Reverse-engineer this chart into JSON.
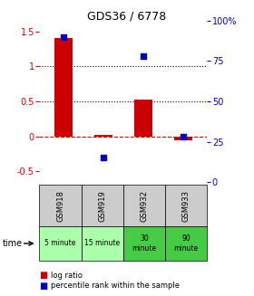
{
  "title": "GDS36 / 6778",
  "samples": [
    "GSM918",
    "GSM919",
    "GSM932",
    "GSM933"
  ],
  "time_labels": [
    "5 minute",
    "15 minute",
    "30\nminute",
    "90\nminute"
  ],
  "time_colors_light": [
    "#aaffaa",
    "#aaffaa"
  ],
  "time_colors_dark": [
    "#44bb44",
    "#44bb44"
  ],
  "log_ratios": [
    1.4,
    0.02,
    0.52,
    -0.05
  ],
  "percentile_ranks": [
    90,
    15,
    78,
    28
  ],
  "bar_color": "#cc0000",
  "dot_color": "#0000cc",
  "ylim_left": [
    -0.65,
    1.65
  ],
  "ylim_right": [
    0,
    100
  ],
  "yticks_left": [
    -0.5,
    0.0,
    0.5,
    1.0,
    1.5
  ],
  "yticks_right": [
    0,
    25,
    50,
    75,
    100
  ],
  "ytick_labels_left": [
    "-0.5",
    "0",
    "0.5",
    "1",
    "1.5"
  ],
  "ytick_labels_right": [
    "0",
    "25",
    "50",
    "75",
    "100%"
  ],
  "hlines": [
    0.0,
    0.5,
    1.0
  ],
  "hline_styles": [
    "dashed",
    "dotted",
    "dotted"
  ],
  "hline_colors": [
    "#cc0000",
    "#000000",
    "#000000"
  ],
  "bg_color": "#ffffff",
  "sample_bg_color": "#cccccc",
  "time_colors": [
    "#aaffaa",
    "#aaffaa",
    "#44cc44",
    "#44cc44"
  ]
}
